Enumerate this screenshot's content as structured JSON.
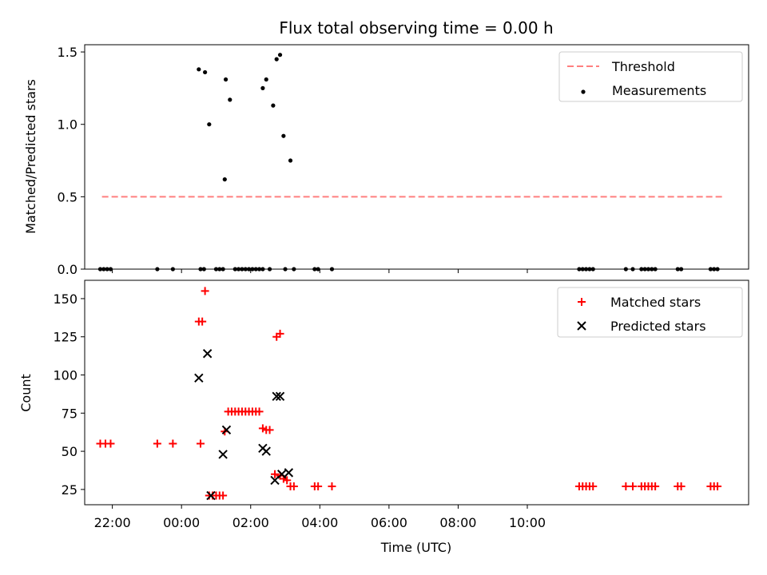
{
  "chart_data": [
    {
      "type": "scatter",
      "title": "Flux total observing time = 0.00 h",
      "ylabel": "Matched/Predicted stars",
      "xlabel": "",
      "x_unit": "hours since 22:00 UTC",
      "xlim": [
        -0.8,
        18.4
      ],
      "ylim": [
        0,
        1.55
      ],
      "yticks": [
        0.0,
        0.5,
        1.0,
        1.5
      ],
      "ytick_labels": [
        "0.0",
        "0.5",
        "1.0",
        "1.5"
      ],
      "legend_position": "top-right",
      "threshold": {
        "name": "Threshold",
        "value": 0.5,
        "x_start": -0.3,
        "x_end": 17.7,
        "color": "#ff7f7f"
      },
      "series": [
        {
          "name": "Measurements",
          "marker": "dot",
          "color": "#000000",
          "points": [
            [
              -0.35,
              0.0
            ],
            [
              -0.25,
              0.0
            ],
            [
              -0.15,
              0.0
            ],
            [
              -0.05,
              0.0
            ],
            [
              1.3,
              0.0
            ],
            [
              1.75,
              0.0
            ],
            [
              2.5,
              1.38
            ],
            [
              2.55,
              0.0
            ],
            [
              2.65,
              0.0
            ],
            [
              2.68,
              1.36
            ],
            [
              2.8,
              1.0
            ],
            [
              3.0,
              0.0
            ],
            [
              3.1,
              0.0
            ],
            [
              3.2,
              0.0
            ],
            [
              3.25,
              0.62
            ],
            [
              3.28,
              1.31
            ],
            [
              3.4,
              1.17
            ],
            [
              3.55,
              0.0
            ],
            [
              3.65,
              0.0
            ],
            [
              3.75,
              0.0
            ],
            [
              3.85,
              0.0
            ],
            [
              3.95,
              0.0
            ],
            [
              4.05,
              0.0
            ],
            [
              4.15,
              0.0
            ],
            [
              4.25,
              0.0
            ],
            [
              4.35,
              0.0
            ],
            [
              4.35,
              1.25
            ],
            [
              4.45,
              1.31
            ],
            [
              4.55,
              0.0
            ],
            [
              4.65,
              1.13
            ],
            [
              4.75,
              1.45
            ],
            [
              4.85,
              1.48
            ],
            [
              4.95,
              0.92
            ],
            [
              5.0,
              0.0
            ],
            [
              5.15,
              0.75
            ],
            [
              5.25,
              0.0
            ],
            [
              5.85,
              0.0
            ],
            [
              5.95,
              0.0
            ],
            [
              6.35,
              0.0
            ],
            [
              13.5,
              0.0
            ],
            [
              13.6,
              0.0
            ],
            [
              13.7,
              0.0
            ],
            [
              13.8,
              0.0
            ],
            [
              13.9,
              0.0
            ],
            [
              14.85,
              0.0
            ],
            [
              15.05,
              0.0
            ],
            [
              15.3,
              0.0
            ],
            [
              15.4,
              0.0
            ],
            [
              15.5,
              0.0
            ],
            [
              15.6,
              0.0
            ],
            [
              15.7,
              0.0
            ],
            [
              16.35,
              0.0
            ],
            [
              16.45,
              0.0
            ],
            [
              17.3,
              0.0
            ],
            [
              17.4,
              0.0
            ],
            [
              17.5,
              0.0
            ]
          ]
        }
      ]
    },
    {
      "type": "scatter",
      "title": "",
      "ylabel": "Count",
      "xlabel": "Time (UTC)",
      "x_unit": "hours since 22:00 UTC",
      "xlim": [
        -0.8,
        18.4
      ],
      "ylim": [
        15,
        162
      ],
      "yticks": [
        25,
        50,
        75,
        100,
        125,
        150
      ],
      "ytick_labels": [
        "25",
        "50",
        "75",
        "100",
        "125",
        "150"
      ],
      "xticks": [
        0,
        2,
        4,
        6,
        8,
        10,
        12
      ],
      "xtick_labels": [
        "22:00",
        "00:00",
        "02:00",
        "04:00",
        "06:00",
        "08:00",
        "10:00"
      ],
      "legend_position": "top-right",
      "series": [
        {
          "name": "Matched stars",
          "marker": "plus",
          "color": "#ff0000",
          "points": [
            [
              -0.35,
              55
            ],
            [
              -0.2,
              55
            ],
            [
              -0.05,
              55
            ],
            [
              1.3,
              55
            ],
            [
              1.75,
              55
            ],
            [
              2.55,
              55
            ],
            [
              2.5,
              135
            ],
            [
              2.6,
              135
            ],
            [
              2.68,
              155
            ],
            [
              2.8,
              21
            ],
            [
              2.9,
              21
            ],
            [
              3.0,
              21
            ],
            [
              3.1,
              21
            ],
            [
              3.2,
              21
            ],
            [
              3.25,
              63
            ],
            [
              3.35,
              76
            ],
            [
              3.45,
              76
            ],
            [
              3.55,
              76
            ],
            [
              3.65,
              76
            ],
            [
              3.75,
              76
            ],
            [
              3.85,
              76
            ],
            [
              3.95,
              76
            ],
            [
              4.05,
              76
            ],
            [
              4.15,
              76
            ],
            [
              4.25,
              76
            ],
            [
              4.35,
              65
            ],
            [
              4.45,
              64
            ],
            [
              4.55,
              64
            ],
            [
              4.7,
              35
            ],
            [
              4.75,
              125
            ],
            [
              4.85,
              127
            ],
            [
              4.85,
              34
            ],
            [
              4.95,
              32
            ],
            [
              5.05,
              31
            ],
            [
              5.15,
              27
            ],
            [
              5.25,
              27
            ],
            [
              5.85,
              27
            ],
            [
              5.95,
              27
            ],
            [
              6.35,
              27
            ],
            [
              13.5,
              27
            ],
            [
              13.6,
              27
            ],
            [
              13.7,
              27
            ],
            [
              13.8,
              27
            ],
            [
              13.9,
              27
            ],
            [
              14.85,
              27
            ],
            [
              15.05,
              27
            ],
            [
              15.3,
              27
            ],
            [
              15.4,
              27
            ],
            [
              15.5,
              27
            ],
            [
              15.6,
              27
            ],
            [
              15.7,
              27
            ],
            [
              16.35,
              27
            ],
            [
              16.45,
              27
            ],
            [
              17.3,
              27
            ],
            [
              17.4,
              27
            ],
            [
              17.5,
              27
            ]
          ]
        },
        {
          "name": "Predicted stars",
          "marker": "x",
          "color": "#000000",
          "points": [
            [
              2.5,
              98
            ],
            [
              2.75,
              114
            ],
            [
              2.85,
              21
            ],
            [
              3.2,
              48
            ],
            [
              3.3,
              64
            ],
            [
              4.35,
              52
            ],
            [
              4.45,
              50
            ],
            [
              4.7,
              31
            ],
            [
              4.75,
              86
            ],
            [
              4.85,
              86
            ],
            [
              4.9,
              35
            ],
            [
              5.1,
              36
            ]
          ]
        }
      ]
    }
  ]
}
